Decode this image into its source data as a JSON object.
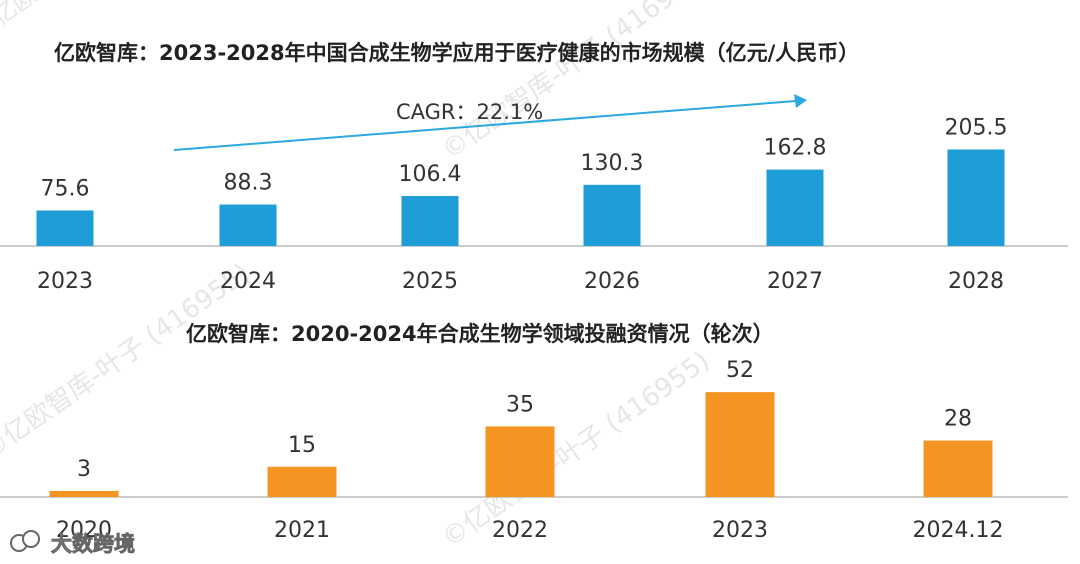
{
  "colors": {
    "blue": "#1E9DD6",
    "orange": "#F59323",
    "text": "#333333",
    "axis": "#BBBBBB",
    "arrow": "#2BA8DE"
  },
  "watermarks": [
    "©亿欧智库-叶子 (416955)",
    "©亿欧智库-叶子 (416955)",
    "©亿欧智库-叶子 (416955)",
    "©亿欧智库-叶子 (416955)"
  ],
  "source": {
    "logo_icon": "wechat-logo-icon",
    "text": "大数跨境"
  },
  "chart_data": [
    {
      "type": "bar",
      "title": "亿欧智库：2023-2028年中国合成生物学应用于医疗健康的市场规模（亿元/人民币）",
      "categories": [
        "2023",
        "2024",
        "2025",
        "2026",
        "2027",
        "2028"
      ],
      "values": [
        75.6,
        88.3,
        106.4,
        130.3,
        162.8,
        205.5
      ],
      "value_labels": [
        "75.6",
        "88.3",
        "106.4",
        "130.3",
        "162.8",
        "205.5"
      ],
      "annotation": "CAGR：22.1%",
      "xlabel": "",
      "ylabel": "",
      "ylim": [
        0,
        230
      ],
      "grid": false,
      "color": "#1E9DD6"
    },
    {
      "type": "bar",
      "title": "亿欧智库：2020-2024年合成生物学领域投融资情况（轮次）",
      "categories": [
        "2020",
        "2021",
        "2022",
        "2023",
        "2024.12"
      ],
      "values": [
        3,
        15,
        35,
        52,
        28
      ],
      "value_labels": [
        "3",
        "15",
        "35",
        "52",
        "28"
      ],
      "xlabel": "",
      "ylabel": "",
      "ylim": [
        0,
        60
      ],
      "grid": false,
      "color": "#F59323"
    }
  ]
}
